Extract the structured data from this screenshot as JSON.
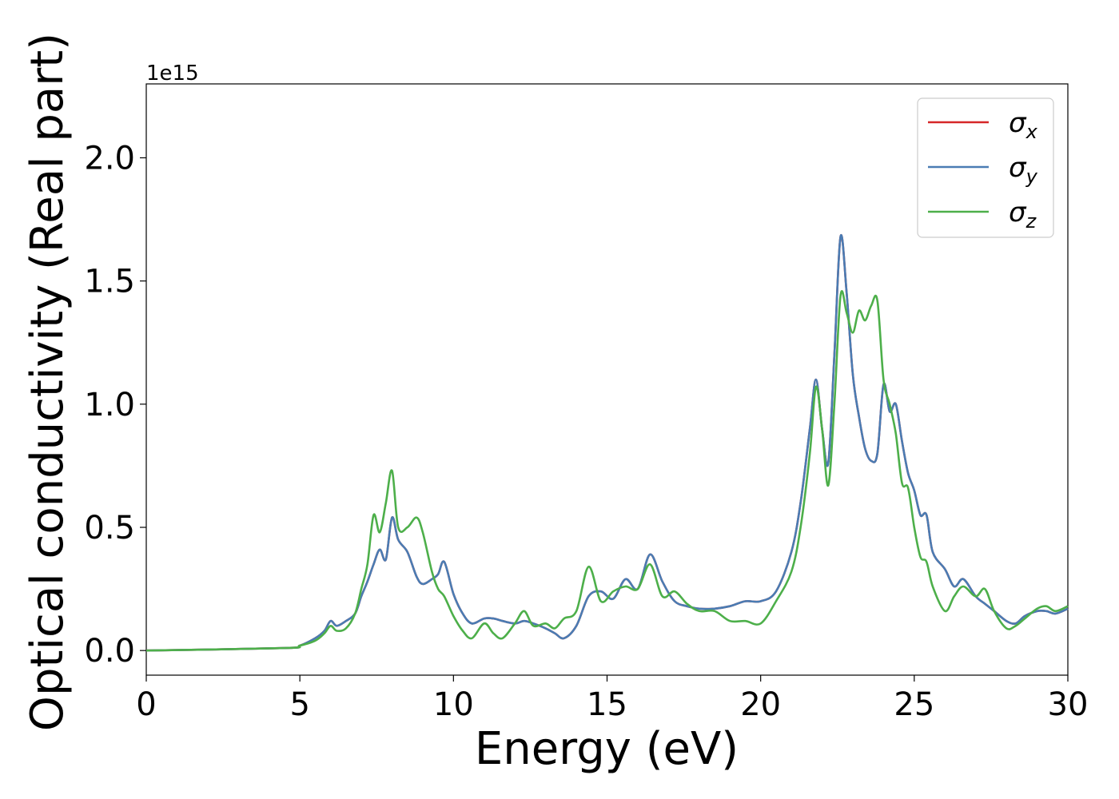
{
  "chart_data": {
    "type": "line",
    "xlabel": "Energy (eV)",
    "ylabel": "Optical conductivity (Real part)",
    "y_offset_label": "1e15",
    "xlim": [
      0,
      30
    ],
    "ylim": [
      -0.1,
      2.3
    ],
    "x_ticks": [
      0,
      5,
      10,
      15,
      20,
      25,
      30
    ],
    "x_tick_labels": [
      "0",
      "5",
      "10",
      "15",
      "20",
      "25",
      "30"
    ],
    "y_ticks": [
      0.0,
      0.5,
      1.0,
      1.5,
      2.0
    ],
    "y_tick_labels": [
      "0.0",
      "0.5",
      "1.0",
      "1.5",
      "2.0"
    ],
    "grid": false,
    "legend_position": "top-right",
    "series": [
      {
        "name": "σx",
        "legend_symbol": "σ",
        "legend_subscript": "x",
        "color": "#d62728",
        "x": [
          0,
          4.5,
          5,
          5.5,
          5.8,
          6,
          6.2,
          6.5,
          6.8,
          7,
          7.2,
          7.4,
          7.6,
          7.8,
          8,
          8.2,
          8.5,
          8.8,
          9,
          9.3,
          9.5,
          9.7,
          10,
          10.3,
          10.6,
          11,
          11.3,
          11.6,
          12,
          12.3,
          12.6,
          13,
          13.3,
          13.6,
          14,
          14.4,
          14.8,
          15.2,
          15.6,
          16,
          16.4,
          16.8,
          17.2,
          17.6,
          18,
          18.5,
          19,
          19.5,
          20,
          20.5,
          21,
          21.3,
          21.6,
          21.8,
          22,
          22.2,
          22.4,
          22.6,
          22.8,
          23,
          23.2,
          23.4,
          23.6,
          23.8,
          24,
          24.2,
          24.4,
          24.6,
          24.8,
          25,
          25.2,
          25.4,
          25.6,
          26,
          26.3,
          26.6,
          27,
          27.3,
          27.6,
          28,
          28.3,
          28.6,
          29,
          29.3,
          29.6,
          30
        ],
        "y": [
          0,
          0.01,
          0.02,
          0.05,
          0.08,
          0.12,
          0.1,
          0.12,
          0.15,
          0.22,
          0.28,
          0.35,
          0.41,
          0.37,
          0.54,
          0.45,
          0.4,
          0.3,
          0.27,
          0.29,
          0.31,
          0.36,
          0.23,
          0.15,
          0.11,
          0.13,
          0.13,
          0.12,
          0.11,
          0.12,
          0.11,
          0.09,
          0.07,
          0.05,
          0.1,
          0.22,
          0.24,
          0.21,
          0.29,
          0.25,
          0.39,
          0.28,
          0.2,
          0.18,
          0.17,
          0.17,
          0.18,
          0.2,
          0.2,
          0.24,
          0.4,
          0.6,
          0.9,
          1.1,
          0.9,
          0.76,
          1.2,
          1.68,
          1.45,
          1.12,
          0.95,
          0.82,
          0.77,
          0.8,
          1.08,
          0.97,
          1.0,
          0.85,
          0.72,
          0.65,
          0.55,
          0.55,
          0.4,
          0.33,
          0.26,
          0.29,
          0.22,
          0.19,
          0.16,
          0.12,
          0.11,
          0.14,
          0.16,
          0.16,
          0.15,
          0.17
        ]
      },
      {
        "name": "σy",
        "legend_symbol": "σ",
        "legend_subscript": "y",
        "color": "#4a7cb3",
        "x": [
          0,
          4.5,
          5,
          5.5,
          5.8,
          6,
          6.2,
          6.5,
          6.8,
          7,
          7.2,
          7.4,
          7.6,
          7.8,
          8,
          8.2,
          8.5,
          8.8,
          9,
          9.3,
          9.5,
          9.7,
          10,
          10.3,
          10.6,
          11,
          11.3,
          11.6,
          12,
          12.3,
          12.6,
          13,
          13.3,
          13.6,
          14,
          14.4,
          14.8,
          15.2,
          15.6,
          16,
          16.4,
          16.8,
          17.2,
          17.6,
          18,
          18.5,
          19,
          19.5,
          20,
          20.5,
          21,
          21.3,
          21.6,
          21.8,
          22,
          22.2,
          22.4,
          22.6,
          22.8,
          23,
          23.2,
          23.4,
          23.6,
          23.8,
          24,
          24.2,
          24.4,
          24.6,
          24.8,
          25,
          25.2,
          25.4,
          25.6,
          26,
          26.3,
          26.6,
          27,
          27.3,
          27.6,
          28,
          28.3,
          28.6,
          29,
          29.3,
          29.6,
          30
        ],
        "y": [
          0,
          0.01,
          0.02,
          0.05,
          0.08,
          0.12,
          0.1,
          0.12,
          0.15,
          0.22,
          0.28,
          0.35,
          0.41,
          0.37,
          0.54,
          0.45,
          0.4,
          0.3,
          0.27,
          0.29,
          0.31,
          0.36,
          0.23,
          0.15,
          0.11,
          0.13,
          0.13,
          0.12,
          0.11,
          0.12,
          0.11,
          0.09,
          0.07,
          0.05,
          0.1,
          0.22,
          0.24,
          0.21,
          0.29,
          0.25,
          0.39,
          0.28,
          0.2,
          0.18,
          0.17,
          0.17,
          0.18,
          0.2,
          0.2,
          0.24,
          0.4,
          0.6,
          0.9,
          1.1,
          0.9,
          0.76,
          1.2,
          1.68,
          1.45,
          1.12,
          0.95,
          0.82,
          0.77,
          0.8,
          1.08,
          0.97,
          1.0,
          0.85,
          0.72,
          0.65,
          0.55,
          0.55,
          0.4,
          0.33,
          0.26,
          0.29,
          0.22,
          0.19,
          0.16,
          0.12,
          0.11,
          0.14,
          0.16,
          0.16,
          0.15,
          0.17
        ]
      },
      {
        "name": "σz",
        "legend_symbol": "σ",
        "legend_subscript": "z",
        "color": "#4daf4a",
        "x": [
          0,
          4.5,
          5,
          5.5,
          5.8,
          6,
          6.2,
          6.5,
          6.8,
          7,
          7.2,
          7.4,
          7.6,
          7.8,
          8,
          8.2,
          8.5,
          8.8,
          9,
          9.3,
          9.5,
          9.7,
          10,
          10.3,
          10.6,
          11,
          11.3,
          11.6,
          12,
          12.3,
          12.6,
          13,
          13.3,
          13.6,
          14,
          14.4,
          14.8,
          15.2,
          15.6,
          16,
          16.4,
          16.8,
          17.2,
          17.6,
          18,
          18.5,
          19,
          19.5,
          20,
          20.5,
          21,
          21.3,
          21.6,
          21.8,
          22,
          22.2,
          22.4,
          22.6,
          22.8,
          23,
          23.2,
          23.4,
          23.6,
          23.8,
          24,
          24.2,
          24.4,
          24.6,
          24.8,
          25,
          25.2,
          25.4,
          25.6,
          26,
          26.3,
          26.6,
          27,
          27.3,
          27.6,
          28,
          28.3,
          28.6,
          29,
          29.3,
          29.6,
          30
        ],
        "y": [
          0,
          0.01,
          0.02,
          0.04,
          0.07,
          0.1,
          0.08,
          0.09,
          0.15,
          0.25,
          0.35,
          0.55,
          0.48,
          0.6,
          0.73,
          0.5,
          0.5,
          0.54,
          0.48,
          0.32,
          0.25,
          0.22,
          0.14,
          0.08,
          0.05,
          0.11,
          0.07,
          0.05,
          0.11,
          0.16,
          0.1,
          0.11,
          0.09,
          0.13,
          0.16,
          0.34,
          0.2,
          0.24,
          0.26,
          0.25,
          0.35,
          0.22,
          0.24,
          0.19,
          0.16,
          0.16,
          0.12,
          0.12,
          0.11,
          0.2,
          0.32,
          0.5,
          0.8,
          1.07,
          0.9,
          0.67,
          1.0,
          1.44,
          1.37,
          1.29,
          1.38,
          1.34,
          1.4,
          1.42,
          1.1,
          1.0,
          0.88,
          0.68,
          0.66,
          0.5,
          0.38,
          0.36,
          0.26,
          0.16,
          0.22,
          0.26,
          0.22,
          0.25,
          0.16,
          0.09,
          0.1,
          0.13,
          0.17,
          0.18,
          0.16,
          0.18
        ]
      }
    ]
  }
}
